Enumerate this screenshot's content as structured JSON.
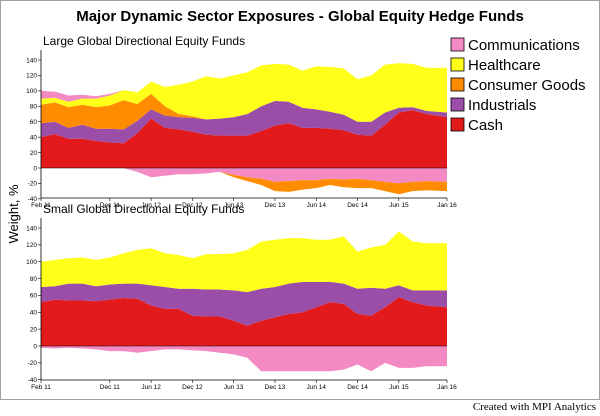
{
  "chart_data": {
    "type": "area",
    "title": "Major Dynamic Sector Exposures - Global Equity Hedge Funds",
    "ylabel": "Weight, %",
    "credit": "Created with MPI Analytics",
    "legend_position": "top-right",
    "legend": [
      {
        "name": "Communications",
        "color": "#f48ac4"
      },
      {
        "name": "Healthcare",
        "color": "#ffff1a"
      },
      {
        "name": "Consumer Goods",
        "color": "#ff8c00"
      },
      {
        "name": "Industrials",
        "color": "#9b4ea8"
      },
      {
        "name": "Cash",
        "color": "#e31a1c"
      }
    ],
    "x_tick_labels": [
      "Feb 11",
      "Dec 11",
      "Jun 12",
      "Dec 12",
      "Jun 13",
      "Dec 13",
      "Jun 14",
      "Dec 14",
      "Jun 15",
      "Jan 16"
    ],
    "y_ticks": [
      -40,
      -20,
      0,
      20,
      40,
      60,
      80,
      100,
      120,
      140
    ],
    "ylim": [
      -40,
      140
    ],
    "panels": [
      {
        "title": "Large Global Directional Equity Funds",
        "dates": [
          "2011-02",
          "2011-04",
          "2011-06",
          "2011-08",
          "2011-10",
          "2011-12",
          "2012-02",
          "2012-04",
          "2012-06",
          "2012-08",
          "2012-10",
          "2012-12",
          "2013-02",
          "2013-04",
          "2013-06",
          "2013-08",
          "2013-10",
          "2013-12",
          "2014-02",
          "2014-04",
          "2014-06",
          "2014-08",
          "2014-10",
          "2014-12",
          "2015-02",
          "2015-04",
          "2015-06",
          "2015-08",
          "2015-10",
          "2016-01"
        ],
        "series": [
          {
            "name": "Cash",
            "values": [
              40,
              44,
              38,
              38,
              35,
              33,
              32,
              45,
              64,
              52,
              50,
              47,
              43,
              42,
              42,
              42,
              48,
              55,
              58,
              52,
              52,
              51,
              49,
              43,
              42,
              56,
              72,
              75,
              70,
              66
            ]
          },
          {
            "name": "Industrials",
            "values": [
              18,
              16,
              14,
              18,
              16,
              18,
              18,
              16,
              12,
              16,
              16,
              18,
              20,
              22,
              24,
              28,
              32,
              32,
              28,
              26,
              24,
              22,
              20,
              17,
              18,
              16,
              6,
              4,
              4,
              6
            ]
          },
          {
            "name": "Consumer Goods",
            "values": [
              24,
              25,
              27,
              26,
              28,
              30,
              38,
              22,
              20,
              12,
              4,
              2,
              0,
              0,
              0,
              0,
              0,
              0,
              0,
              0,
              0,
              0,
              0,
              0,
              0,
              0,
              0,
              0,
              0,
              0
            ]
          },
          {
            "name": "Healthcare",
            "values": [
              8,
              6,
              7,
              8,
              11,
              13,
              13,
              15,
              16,
              25,
              38,
              45,
              56,
              52,
              54,
              54,
              53,
              48,
              48,
              48,
              56,
              58,
              60,
              55,
              60,
              62,
              58,
              56,
              56,
              58
            ]
          },
          {
            "name": "Communications",
            "values": [
              10,
              8,
              8,
              5,
              3,
              2,
              0,
              0,
              0,
              0,
              0,
              0,
              0,
              0,
              0,
              0,
              0,
              0,
              0,
              0,
              0,
              0,
              0,
              0,
              0,
              0,
              0,
              0,
              0,
              0
            ]
          },
          {
            "name": "Communications",
            "values": [
              0,
              0,
              0,
              0,
              0,
              0,
              0,
              -5,
              -12,
              -10,
              -8,
              -8,
              -7,
              -5,
              -9,
              -12,
              -14,
              -18,
              -17,
              -16,
              -16,
              -14,
              -15,
              -14,
              -16,
              -18,
              -20,
              -18,
              -17,
              -18
            ]
          },
          {
            "name": "Consumer Goods",
            "values": [
              0,
              0,
              0,
              0,
              0,
              0,
              0,
              0,
              0,
              0,
              0,
              0,
              0,
              0,
              -3,
              -5,
              -8,
              -12,
              -14,
              -12,
              -10,
              -8,
              -10,
              -12,
              -10,
              -12,
              -14,
              -12,
              -12,
              -12
            ]
          }
        ]
      },
      {
        "title": "Small Global Directional Equity Funds",
        "dates": [
          "2011-02",
          "2011-04",
          "2011-06",
          "2011-08",
          "2011-10",
          "2011-12",
          "2012-02",
          "2012-04",
          "2012-06",
          "2012-08",
          "2012-10",
          "2012-12",
          "2013-02",
          "2013-04",
          "2013-06",
          "2013-08",
          "2013-10",
          "2013-12",
          "2014-02",
          "2014-04",
          "2014-06",
          "2014-08",
          "2014-10",
          "2014-12",
          "2015-02",
          "2015-04",
          "2015-06",
          "2015-08",
          "2015-10",
          "2016-01"
        ],
        "series": [
          {
            "name": "Cash",
            "values": [
              52,
              55,
              54,
              54,
              53,
              55,
              57,
              56,
              48,
              44,
              44,
              36,
              35,
              35,
              30,
              24,
              30,
              34,
              38,
              40,
              46,
              52,
              50,
              38,
              36,
              46,
              58,
              52,
              48,
              46
            ]
          },
          {
            "name": "Industrials",
            "values": [
              18,
              16,
              20,
              20,
              18,
              18,
              17,
              18,
              24,
              26,
              24,
              32,
              32,
              32,
              36,
              40,
              38,
              36,
              36,
              36,
              30,
              24,
              24,
              30,
              33,
              22,
              14,
              14,
              18,
              20
            ]
          },
          {
            "name": "Healthcare",
            "values": [
              30,
              31,
              30,
              31,
              31,
              32,
              36,
              40,
              44,
              40,
              40,
              36,
              42,
              42,
              44,
              50,
              56,
              56,
              54,
              52,
              50,
              50,
              56,
              44,
              48,
              52,
              64,
              58,
              56,
              56
            ]
          },
          {
            "name": "Communications",
            "values": [
              -2,
              -3,
              -2,
              -3,
              -4,
              -6,
              -6,
              -8,
              -6,
              -4,
              -4,
              -5,
              -6,
              -8,
              -10,
              -14,
              -30,
              -30,
              -30,
              -30,
              -30,
              -30,
              -28,
              -22,
              -30,
              -20,
              -26,
              -26,
              -24,
              -24
            ]
          }
        ]
      }
    ]
  }
}
